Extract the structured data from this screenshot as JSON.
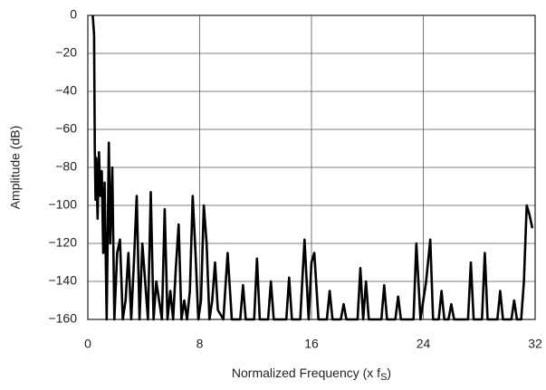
{
  "chart_data": {
    "type": "line",
    "xlabel_parts": [
      "Normalized Frequency (x f",
      "S",
      ")"
    ],
    "ylabel": "Amplitude (dB)",
    "xlim": [
      0,
      32
    ],
    "xticks": [
      0,
      8,
      16,
      24,
      32
    ],
    "ylim": [
      -160,
      0
    ],
    "yticks": [
      {
        "value": -160,
        "label": "−160"
      },
      {
        "value": -140,
        "label": "−140"
      },
      {
        "value": -120,
        "label": "−120"
      },
      {
        "value": -100,
        "label": "−100"
      },
      {
        "value": -80,
        "label": "−80"
      },
      {
        "value": -60,
        "label": "−60"
      },
      {
        "value": -40,
        "label": "−40"
      },
      {
        "value": -20,
        "label": "−20"
      },
      0
    ],
    "grid": true,
    "series": [
      {
        "color": "#000000",
        "x": [
          0.35,
          0.45,
          0.5,
          0.55,
          0.6,
          0.7,
          0.8,
          0.9,
          1.0,
          1.1,
          1.2,
          1.35,
          1.5,
          1.6,
          1.75,
          1.9,
          2.1,
          2.3,
          2.5,
          2.7,
          2.9,
          3.1,
          3.3,
          3.5,
          3.7,
          3.9,
          4.1,
          4.3,
          4.5,
          4.7,
          4.9,
          5.1,
          5.3,
          5.5,
          5.7,
          5.9,
          6.1,
          6.3,
          6.5,
          6.7,
          6.9,
          7.1,
          7.3,
          7.5,
          7.7,
          7.9,
          8.1,
          8.3,
          8.5,
          8.7,
          8.9,
          9.1,
          9.3,
          9.7,
          10.0,
          10.3,
          10.9,
          11.1,
          11.3,
          11.9,
          12.1,
          12.3,
          12.9,
          13.1,
          13.3,
          14.2,
          14.4,
          14.6,
          15.2,
          15.5,
          15.8,
          16.0,
          16.2,
          16.5,
          17.1,
          17.3,
          17.5,
          18.1,
          18.3,
          18.5,
          19.3,
          19.5,
          19.7,
          19.9,
          20.1,
          21.0,
          21.2,
          21.4,
          22.0,
          22.2,
          22.4,
          23.3,
          23.5,
          23.8,
          24.2,
          24.5,
          24.7,
          25.1,
          25.3,
          25.5,
          25.8,
          26.0,
          26.2,
          27.2,
          27.4,
          27.6,
          28.2,
          28.4,
          28.6,
          29.3,
          29.5,
          29.7,
          30.3,
          30.5,
          30.7,
          31.0,
          31.2,
          31.4,
          31.6,
          31.8
        ],
        "values": [
          0,
          -10,
          -70,
          -97,
          -75,
          -107,
          -72,
          -95,
          -82,
          -125,
          -88,
          -160,
          -67,
          -120,
          -80,
          -160,
          -125,
          -118,
          -160,
          -150,
          -125,
          -160,
          -130,
          -95,
          -160,
          -120,
          -140,
          -160,
          -93,
          -160,
          -140,
          -150,
          -160,
          -102,
          -160,
          -145,
          -160,
          -132,
          -110,
          -160,
          -150,
          -160,
          -145,
          -95,
          -125,
          -160,
          -150,
          -100,
          -120,
          -160,
          -150,
          -130,
          -155,
          -160,
          -125,
          -160,
          -160,
          -142,
          -160,
          -160,
          -128,
          -160,
          -160,
          -140,
          -160,
          -160,
          -138,
          -160,
          -160,
          -118,
          -160,
          -130,
          -125,
          -160,
          -160,
          -145,
          -160,
          -160,
          -152,
          -160,
          -160,
          -133,
          -160,
          -140,
          -160,
          -160,
          -142,
          -160,
          -160,
          -148,
          -160,
          -160,
          -120,
          -160,
          -140,
          -118,
          -160,
          -160,
          -145,
          -160,
          -160,
          -152,
          -160,
          -160,
          -130,
          -160,
          -160,
          -125,
          -160,
          -160,
          -145,
          -160,
          -160,
          -150,
          -160,
          -160,
          -140,
          -100,
          -105,
          -112
        ]
      }
    ]
  }
}
